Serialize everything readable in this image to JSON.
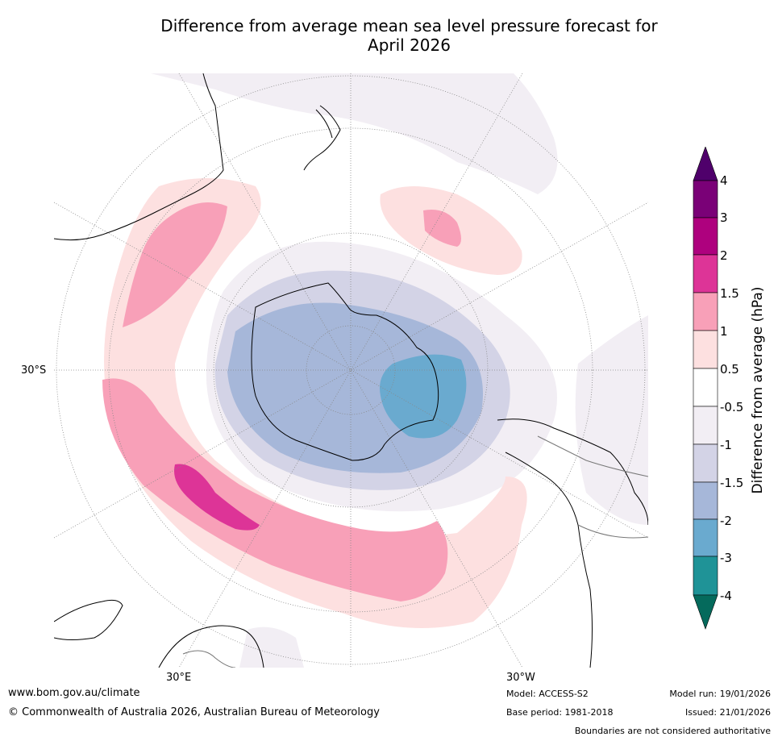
{
  "title_line1": "Difference from average mean sea level pressure forecast for",
  "title_line2": "April 2026",
  "map": {
    "lat_label": "30°S",
    "lon_label_left": "30°E",
    "lon_label_right": "30°W",
    "colors": {
      "ocean": "#ffffff",
      "neg05": "#f2eef4",
      "neg1": "#d3d3e6",
      "neg15": "#a6b7d9",
      "neg2": "#6aaacf",
      "pos05": "#fde0e0",
      "pos1": "#f8a0b8",
      "pos15": "#dd3497"
    }
  },
  "colorbar": {
    "label": "Difference from average (hPa)",
    "ticks": [
      "4",
      "3",
      "2",
      "1.5",
      "1",
      "0.5",
      "-0.5",
      "-1",
      "-1.5",
      "-2",
      "-3",
      "-4"
    ],
    "colors": [
      "#4f006b",
      "#7a0177",
      "#ae017e",
      "#dd3497",
      "#f8a0b8",
      "#fde0e0",
      "#ffffff",
      "#f2eef4",
      "#d3d3e6",
      "#a6b7d9",
      "#6aaacf",
      "#1f9397",
      "#056a5c"
    ]
  },
  "footer": {
    "website": "www.bom.gov.au/climate",
    "copyright": "© Commonwealth of Australia 2026, Australian Bureau of Meteorology",
    "model": "Model: ACCESS-S2",
    "base_period": "Base period: 1981-2018",
    "model_run": "Model run: 19/01/2026",
    "issued": "Issued: 21/01/2026",
    "disclaimer": "Boundaries are not considered authoritative"
  }
}
